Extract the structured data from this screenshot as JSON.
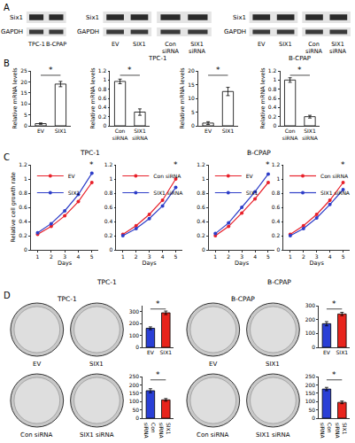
{
  "panel_labels": [
    "A",
    "B",
    "C",
    "D"
  ],
  "blots": [
    {
      "rows": [
        "Six1",
        "GAPDH"
      ],
      "lanes": [
        "TPC-1",
        "B-CPAP"
      ]
    },
    {
      "rows": [
        "Six1",
        "GAPDH"
      ],
      "lanes": [
        "EV",
        "SIX1",
        "Con siRNA",
        "SIX1 siRNA"
      ],
      "cell_line": "TPC-1"
    },
    {
      "rows": [
        "Six1",
        "GAPDH"
      ],
      "lanes": [
        "EV",
        "SIX1",
        "Con siRNA",
        "SIX1 siRNA"
      ],
      "cell_line": "B-CPAP"
    }
  ],
  "groups": {
    "B": [
      "TPC-1",
      "B-CPAP"
    ],
    "C": [
      "TPC-1",
      "B-CPAP"
    ]
  },
  "dishes": {
    "cell_lines": [
      "TPC-1",
      "B-CPAP"
    ],
    "rows": [
      [
        "EV",
        "SIX1"
      ],
      [
        "Con siRNA",
        "SIX1 siRNA"
      ]
    ]
  },
  "chart_data": [
    {
      "type": "bar",
      "categories": [
        "EV",
        "SIX1"
      ],
      "values": [
        1,
        19
      ],
      "errors": [
        0.3,
        1.2
      ],
      "color": "#ffffff",
      "y_label": "Relative mRNA levels",
      "ylim": [
        0,
        25
      ],
      "yticks": [
        0,
        5,
        10,
        15,
        20,
        25
      ],
      "annotations": [
        "*"
      ]
    },
    {
      "type": "bar",
      "categories": [
        "Con siRNA",
        "SIX1 siRNA"
      ],
      "values": [
        0.97,
        0.3
      ],
      "errors": [
        0.05,
        0.07
      ],
      "color": "#ffffff",
      "y_label": "Relative mRNA levels",
      "ylim": [
        0,
        1.2
      ],
      "yticks": [
        0,
        0.2,
        0.4,
        0.6,
        0.8,
        1,
        1.2
      ],
      "annotations": [
        "*"
      ]
    },
    {
      "type": "bar",
      "categories": [
        "EV",
        "SIX1"
      ],
      "values": [
        1,
        12.5
      ],
      "errors": [
        0.5,
        1.5
      ],
      "color": "#ffffff",
      "y_label": "Relative mRNA levels",
      "ylim": [
        0,
        20
      ],
      "yticks": [
        0,
        5,
        10,
        15,
        20
      ],
      "annotations": [
        "*"
      ]
    },
    {
      "type": "bar",
      "categories": [
        "Con siRNA",
        "SIX1 siRNA"
      ],
      "values": [
        1,
        0.2
      ],
      "errors": [
        0.05,
        0.03
      ],
      "color": "#ffffff",
      "y_label": "Relative mRNA levels",
      "ylim": [
        0,
        1.2
      ],
      "yticks": [
        0,
        0.2,
        0.4,
        0.6,
        0.8,
        1,
        1.2
      ],
      "annotations": [
        "*"
      ]
    },
    {
      "type": "line",
      "x": [
        1,
        2,
        3,
        4,
        5
      ],
      "xlim": [
        0.5,
        5.5
      ],
      "xticks": [
        1,
        2,
        3,
        4,
        5
      ],
      "x_label": "Days",
      "y_label": "Relative cell growth rate",
      "ylim": [
        0,
        1.2
      ],
      "yticks": [
        0,
        0.2,
        0.4,
        0.6,
        0.8,
        1,
        1.2
      ],
      "legend": "upper left",
      "marker": "circle",
      "annotations": [
        "*"
      ],
      "series": [
        {
          "name": "EV",
          "color": "#e8202a",
          "values": [
            0.22,
            0.33,
            0.48,
            0.68,
            0.95
          ]
        },
        {
          "name": "SIX1",
          "color": "#2e3ec8",
          "values": [
            0.24,
            0.37,
            0.55,
            0.78,
            1.08
          ]
        }
      ]
    },
    {
      "type": "line",
      "x": [
        1,
        2,
        3,
        4,
        5
      ],
      "xlim": [
        0.5,
        5.5
      ],
      "xticks": [
        1,
        2,
        3,
        4,
        5
      ],
      "x_label": "Days",
      "ylim": [
        0,
        1.2
      ],
      "yticks": [
        0,
        0.2,
        0.4,
        0.6,
        0.8,
        1,
        1.2
      ],
      "legend": "upper left",
      "marker": "circle",
      "annotations": [
        "*"
      ],
      "series": [
        {
          "name": "Con siRNA",
          "color": "#e8202a",
          "values": [
            0.22,
            0.34,
            0.5,
            0.7,
            1.0
          ]
        },
        {
          "name": "SIX1 siRNA",
          "color": "#2e3ec8",
          "values": [
            0.2,
            0.3,
            0.44,
            0.62,
            0.88
          ]
        }
      ]
    },
    {
      "type": "line",
      "x": [
        1,
        2,
        3,
        4,
        5
      ],
      "xlim": [
        0.5,
        5.5
      ],
      "xticks": [
        1,
        2,
        3,
        4,
        5
      ],
      "x_label": "Days",
      "ylim": [
        0,
        1.2
      ],
      "yticks": [
        0,
        0.2,
        0.4,
        0.6,
        0.8,
        1,
        1.2
      ],
      "legend": "upper left",
      "marker": "circle",
      "annotations": [
        "*"
      ],
      "series": [
        {
          "name": "EV",
          "color": "#e8202a",
          "values": [
            0.2,
            0.33,
            0.52,
            0.72,
            0.95
          ]
        },
        {
          "name": "SIX1",
          "color": "#2e3ec8",
          "values": [
            0.23,
            0.38,
            0.6,
            0.82,
            1.07
          ]
        }
      ]
    },
    {
      "type": "line",
      "x": [
        1,
        2,
        3,
        4,
        5
      ],
      "xlim": [
        0.5,
        5.5
      ],
      "xticks": [
        1,
        2,
        3,
        4,
        5
      ],
      "x_label": "Days",
      "ylim": [
        0,
        1.2
      ],
      "yticks": [
        0,
        0.2,
        0.4,
        0.6,
        0.8,
        1,
        1.2
      ],
      "legend": "upper left",
      "marker": "circle",
      "annotations": [
        "*"
      ],
      "series": [
        {
          "name": "Con siRNA",
          "color": "#e8202a",
          "values": [
            0.22,
            0.34,
            0.5,
            0.7,
            0.95
          ]
        },
        {
          "name": "SIX1 siRNA",
          "color": "#2e3ec8",
          "values": [
            0.2,
            0.3,
            0.45,
            0.64,
            0.85
          ]
        }
      ]
    },
    {
      "type": "bar",
      "categories": [
        "EV",
        "SIX1"
      ],
      "values": [
        160,
        290
      ],
      "errors": [
        12,
        15
      ],
      "colors": [
        "#2a3fd6",
        "#e8241c"
      ],
      "ylim": [
        0,
        350
      ],
      "yticks": [
        0,
        100,
        200,
        300
      ],
      "annotations": [
        "*"
      ]
    },
    {
      "type": "bar",
      "categories": [
        "Con siRNA",
        "SIX1 siRNA"
      ],
      "values": [
        165,
        110
      ],
      "errors": [
        12,
        8
      ],
      "colors": [
        "#2a3fd6",
        "#e8241c"
      ],
      "ylim": [
        0,
        250
      ],
      "yticks": [
        0,
        50,
        100,
        150,
        200,
        250
      ],
      "annotations": [
        "*"
      ]
    },
    {
      "type": "bar",
      "categories": [
        "EV",
        "SIX1"
      ],
      "values": [
        170,
        240
      ],
      "errors": [
        15,
        12
      ],
      "colors": [
        "#2a3fd6",
        "#e8241c"
      ],
      "ylim": [
        0,
        300
      ],
      "yticks": [
        0,
        100,
        200,
        300
      ],
      "annotations": [
        "*"
      ]
    },
    {
      "type": "bar",
      "categories": [
        "Con siRNA",
        "SIX1 siRNA"
      ],
      "values": [
        175,
        95
      ],
      "errors": [
        10,
        8
      ],
      "colors": [
        "#2a3fd6",
        "#e8241c"
      ],
      "ylim": [
        0,
        250
      ],
      "yticks": [
        0,
        50,
        100,
        150,
        200,
        250
      ],
      "annotations": [
        "*"
      ]
    }
  ]
}
